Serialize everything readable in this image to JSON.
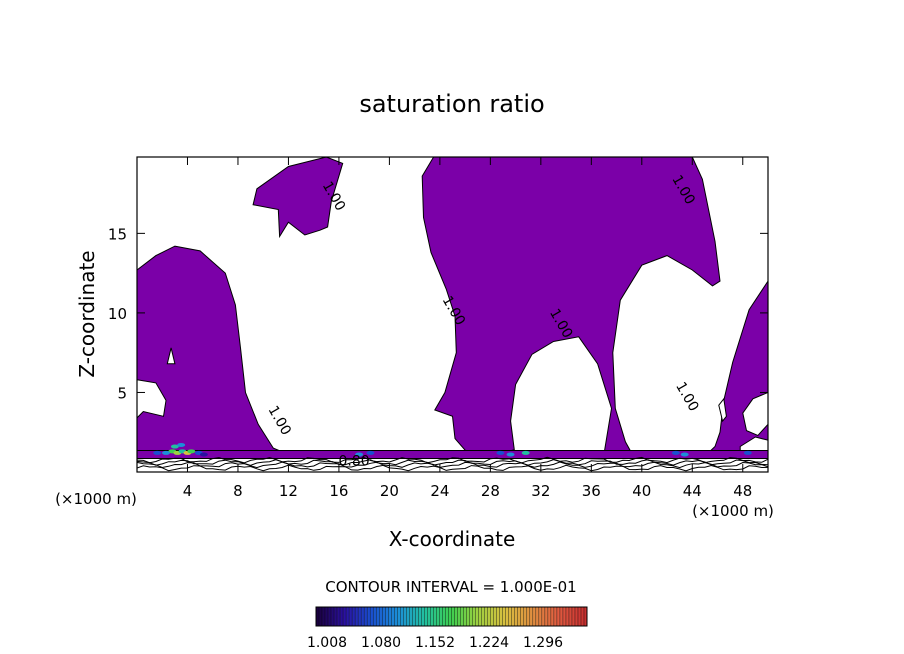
{
  "chart_data": {
    "type": "contour",
    "title": "saturation ratio",
    "xlabel": "X-coordinate",
    "ylabel": "Z-coordinate",
    "x_unit": "(×1000 m)",
    "x_unit_right": "(×1000 m)",
    "xlim": [
      0,
      50
    ],
    "ylim": [
      0,
      19.8
    ],
    "x_ticks": [
      4,
      8,
      12,
      16,
      20,
      24,
      28,
      32,
      36,
      40,
      44,
      48
    ],
    "y_ticks": [
      5,
      10,
      15
    ],
    "fill_color": "#7b00a8",
    "contour_interval_text": "CONTOUR INTERVAL = 1.000E-01",
    "contour_labels": [
      {
        "text": "1.00",
        "x": 15.3,
        "z": 17.2
      },
      {
        "text": "1.00",
        "x": 24.8,
        "z": 10.0
      },
      {
        "text": "1.00",
        "x": 33.3,
        "z": 9.2
      },
      {
        "text": "1.00",
        "x": 43.0,
        "z": 17.6
      },
      {
        "text": "1.00",
        "x": 43.3,
        "z": 4.6
      },
      {
        "text": "1.00",
        "x": 11.0,
        "z": 3.1
      },
      {
        "text": "0.80",
        "x": 17.2,
        "z": 0.4
      }
    ],
    "filled_regions": [
      {
        "name": "left-column",
        "points": [
          [
            0,
            12.7
          ],
          [
            1.5,
            13.6
          ],
          [
            3,
            14.2
          ],
          [
            5,
            13.9
          ],
          [
            7,
            12.5
          ],
          [
            7.8,
            10.5
          ],
          [
            8.2,
            7.8
          ],
          [
            8.6,
            5
          ],
          [
            9.6,
            3
          ],
          [
            10.8,
            1.5
          ],
          [
            12,
            1.1
          ],
          [
            12,
            0.9
          ],
          [
            0,
            0.9
          ]
        ]
      },
      {
        "name": "upper-left-blob",
        "points": [
          [
            9.5,
            17.8
          ],
          [
            12,
            19.2
          ],
          [
            15,
            19.8
          ],
          [
            16.3,
            19.4
          ],
          [
            15.4,
            17
          ],
          [
            15.1,
            15.4
          ],
          [
            14.5,
            15.2
          ],
          [
            13.3,
            14.9
          ],
          [
            12,
            15.7
          ],
          [
            11.3,
            14.8
          ],
          [
            11.2,
            16.5
          ],
          [
            9.2,
            16.8
          ]
        ]
      },
      {
        "name": "center-anvil",
        "points": [
          [
            23.5,
            19.8
          ],
          [
            44,
            19.8
          ],
          [
            44.8,
            18.4
          ],
          [
            45.8,
            14.5
          ],
          [
            46.2,
            12
          ],
          [
            45.6,
            11.7
          ],
          [
            44,
            12.7
          ],
          [
            42,
            13.6
          ],
          [
            40,
            13
          ],
          [
            38.3,
            10.8
          ],
          [
            37.7,
            7.5
          ],
          [
            37.9,
            4
          ],
          [
            38.7,
            1.9
          ],
          [
            39.4,
            0.9
          ],
          [
            37,
            1.1
          ],
          [
            37.6,
            4
          ],
          [
            36.5,
            6.8
          ],
          [
            35,
            8.5
          ],
          [
            33,
            8.2
          ],
          [
            31.3,
            7.4
          ],
          [
            30,
            5.5
          ],
          [
            29.6,
            3.2
          ],
          [
            29.9,
            1.4
          ],
          [
            28,
            1
          ],
          [
            26.3,
            1.1
          ],
          [
            25.2,
            2.1
          ],
          [
            25,
            3.5
          ],
          [
            23.6,
            3.9
          ],
          [
            24.4,
            5
          ],
          [
            25.3,
            7.5
          ],
          [
            25.2,
            9.8
          ],
          [
            24.5,
            11.5
          ],
          [
            23.3,
            13.8
          ],
          [
            22.7,
            16
          ],
          [
            22.6,
            18.6
          ]
        ]
      },
      {
        "name": "right-edge",
        "points": [
          [
            50,
            12
          ],
          [
            48.5,
            10.2
          ],
          [
            47.2,
            6.9
          ],
          [
            46.5,
            4.5
          ],
          [
            46.2,
            2.5
          ],
          [
            45.8,
            1.6
          ],
          [
            45,
            1
          ],
          [
            50,
            1
          ]
        ]
      },
      {
        "name": "surface-band",
        "points": [
          [
            0,
            0.85
          ],
          [
            50,
            0.85
          ],
          [
            50,
            1.35
          ],
          [
            0,
            1.35
          ]
        ]
      }
    ],
    "holes": [
      {
        "name": "left-hole-1",
        "points": [
          [
            2.4,
            6.8
          ],
          [
            2.7,
            7.8
          ],
          [
            3.0,
            6.8
          ]
        ]
      },
      {
        "name": "left-hole-2",
        "points": [
          [
            0,
            5.8
          ],
          [
            1.5,
            5.6
          ],
          [
            2.3,
            4.5
          ],
          [
            2.1,
            3.5
          ],
          [
            0.5,
            3.8
          ],
          [
            0,
            3.4
          ]
        ]
      },
      {
        "name": "right-hole-1",
        "points": [
          [
            46.1,
            4.2
          ],
          [
            46.5,
            4.6
          ],
          [
            46.7,
            3.5
          ],
          [
            46.4,
            3.2
          ]
        ]
      },
      {
        "name": "right-hole-2",
        "points": [
          [
            48.0,
            3.7
          ],
          [
            48.8,
            4.6
          ],
          [
            50,
            5.0
          ],
          [
            50,
            3.0
          ],
          [
            49.2,
            2.3
          ],
          [
            48.3,
            2.6
          ]
        ]
      },
      {
        "name": "right-hole-3",
        "points": [
          [
            47.8,
            1.6
          ],
          [
            49,
            2.2
          ],
          [
            50,
            2.0
          ],
          [
            50,
            1.35
          ],
          [
            47.8,
            1.35
          ]
        ]
      }
    ],
    "colorbar": {
      "tick_labels": [
        "1.008",
        "1.080",
        "1.152",
        "1.224",
        "1.296"
      ],
      "colors": [
        "#1a0040",
        "#2a10a0",
        "#1a4fd0",
        "#1c8fd8",
        "#22c0a0",
        "#3fcf50",
        "#a0d040",
        "#d8c040",
        "#e09040",
        "#e05a40",
        "#c83030"
      ]
    },
    "grid": false
  }
}
